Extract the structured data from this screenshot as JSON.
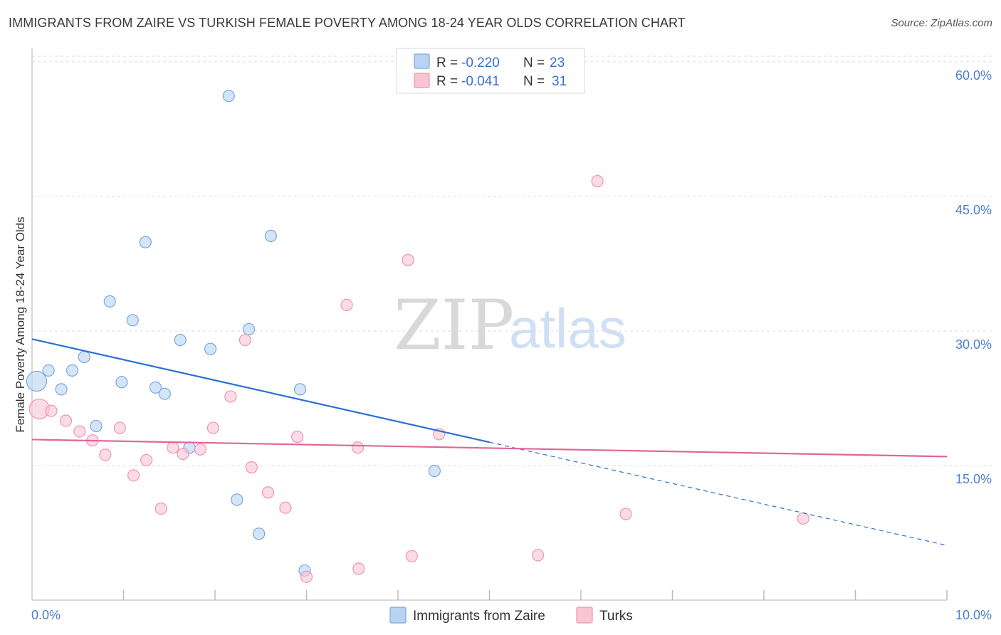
{
  "header": {
    "title": "IMMIGRANTS FROM ZAIRE VS TURKISH FEMALE POVERTY AMONG 18-24 YEAR OLDS CORRELATION CHART",
    "source": "Source: ZipAtlas.com"
  },
  "watermark": {
    "zip": "ZIP",
    "atlas": "atlas"
  },
  "colors": {
    "zaire_fill": "#b9d3f3",
    "zaire_stroke": "#7aa6de",
    "zaire_line": "#2a6fd6",
    "turks_fill": "#f8c5d5",
    "turks_stroke": "#ee95b1",
    "turks_line": "#e0649a",
    "grid": "#dcdcdc",
    "axis_label": "#4a7fd0"
  },
  "legend": {
    "r_label": "R =",
    "n_label": "N =",
    "rows": [
      {
        "r": "-0.220",
        "n": "23"
      },
      {
        "r": "-0.041",
        "n": "31"
      }
    ]
  },
  "chart_data": {
    "type": "scatter",
    "title": "IMMIGRANTS FROM ZAIRE VS TURKISH FEMALE POVERTY AMONG 18-24 YEAR OLDS CORRELATION CHART",
    "xlabel": "",
    "ylabel": "Female Poverty Among 18-24 Year Olds",
    "xlim": [
      0,
      10
    ],
    "ylim": [
      0,
      61.5
    ],
    "x_tick_labels": [
      "0.0%",
      "10.0%"
    ],
    "y_ticks": [
      15,
      30,
      45,
      60
    ],
    "y_tick_labels": [
      "15.0%",
      "30.0%",
      "45.0%",
      "60.0%"
    ],
    "series": [
      {
        "name": "Immigrants from Zaire",
        "r": -0.22,
        "n": 23,
        "points": [
          {
            "x": 0.05,
            "y": 24.4,
            "big": true
          },
          {
            "x": 0.18,
            "y": 25.6
          },
          {
            "x": 0.32,
            "y": 23.5
          },
          {
            "x": 0.44,
            "y": 25.6
          },
          {
            "x": 0.57,
            "y": 27.1
          },
          {
            "x": 0.7,
            "y": 19.4
          },
          {
            "x": 0.85,
            "y": 33.3
          },
          {
            "x": 0.98,
            "y": 24.3
          },
          {
            "x": 1.1,
            "y": 31.2
          },
          {
            "x": 1.24,
            "y": 39.9
          },
          {
            "x": 1.35,
            "y": 23.7
          },
          {
            "x": 1.45,
            "y": 23.0
          },
          {
            "x": 1.62,
            "y": 29.0
          },
          {
            "x": 1.72,
            "y": 17.0
          },
          {
            "x": 1.95,
            "y": 28.0
          },
          {
            "x": 2.15,
            "y": 56.2
          },
          {
            "x": 2.24,
            "y": 11.2
          },
          {
            "x": 2.37,
            "y": 30.2
          },
          {
            "x": 2.48,
            "y": 7.4
          },
          {
            "x": 2.61,
            "y": 40.6
          },
          {
            "x": 2.93,
            "y": 23.5
          },
          {
            "x": 2.98,
            "y": 3.3
          },
          {
            "x": 4.4,
            "y": 14.4
          }
        ],
        "trend": {
          "x0": 0.0,
          "y0": 29.1,
          "x1": 5.0,
          "y1": 17.6,
          "dashed_to_x": 10.0,
          "dashed_to_y": 6.1
        }
      },
      {
        "name": "Turks",
        "r": -0.041,
        "n": 31,
        "points": [
          {
            "x": 0.08,
            "y": 21.3,
            "big": true
          },
          {
            "x": 0.21,
            "y": 21.1
          },
          {
            "x": 0.37,
            "y": 20.0
          },
          {
            "x": 0.52,
            "y": 18.8
          },
          {
            "x": 0.66,
            "y": 17.8
          },
          {
            "x": 0.8,
            "y": 16.2
          },
          {
            "x": 0.96,
            "y": 19.2
          },
          {
            "x": 1.11,
            "y": 13.9
          },
          {
            "x": 1.25,
            "y": 15.6
          },
          {
            "x": 1.41,
            "y": 10.2
          },
          {
            "x": 1.54,
            "y": 17.0
          },
          {
            "x": 1.65,
            "y": 16.3
          },
          {
            "x": 1.84,
            "y": 16.8
          },
          {
            "x": 1.98,
            "y": 19.2
          },
          {
            "x": 2.17,
            "y": 22.7
          },
          {
            "x": 2.33,
            "y": 29.0
          },
          {
            "x": 2.4,
            "y": 14.8
          },
          {
            "x": 2.58,
            "y": 12.0
          },
          {
            "x": 2.77,
            "y": 10.3
          },
          {
            "x": 2.9,
            "y": 18.2
          },
          {
            "x": 3.0,
            "y": 2.6
          },
          {
            "x": 3.44,
            "y": 32.9
          },
          {
            "x": 3.56,
            "y": 17.0
          },
          {
            "x": 3.57,
            "y": 3.5
          },
          {
            "x": 4.11,
            "y": 37.9
          },
          {
            "x": 4.15,
            "y": 4.9
          },
          {
            "x": 4.45,
            "y": 18.5
          },
          {
            "x": 5.53,
            "y": 5.0
          },
          {
            "x": 6.18,
            "y": 46.7
          },
          {
            "x": 6.49,
            "y": 9.6
          },
          {
            "x": 8.43,
            "y": 9.1
          }
        ],
        "trend": {
          "x0": 0.0,
          "y0": 17.9,
          "x1": 10.0,
          "y1": 16.0
        }
      }
    ]
  }
}
